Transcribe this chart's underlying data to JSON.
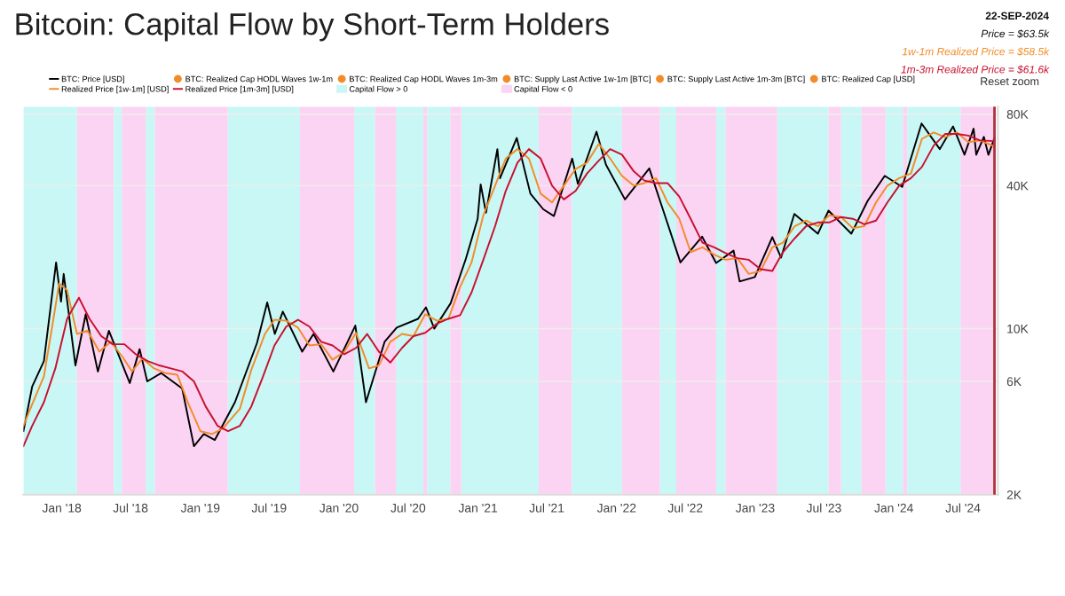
{
  "chart_data": {
    "type": "line",
    "title": "Bitcoin: Capital Flow by Short-Term Holders",
    "annotations": [
      "BTC: Realized Cap HODL Waves 1w-1m",
      "BTC: Realized Cap HODL Waves 1m-3m",
      "BTC: Supply Last Active 1w-1m [BTC]",
      "BTC: Supply Last Active 1m-3m [BTC]",
      "BTC: Realized Cap [USD]",
      "Reset zoom",
      "22-SEP-2024",
      "Price = $63.5k",
      "1w-1m Realized Price = $58.5k",
      "1m-3m Realized Price = $61.6k"
    ],
    "log": "y",
    "grid": "y",
    "legend": "top",
    "line_style": "solid",
    "marker": "none",
    "xlim": [
      "2017-09-22",
      "2024-10-01"
    ],
    "xticks": [
      {
        "value": "2018-01-01",
        "label": "Jan '18"
      },
      {
        "value": "2018-07-01",
        "label": "Jul '18"
      },
      {
        "value": "2019-01-01",
        "label": "Jan '19"
      },
      {
        "value": "2019-07-01",
        "label": "Jul '19"
      },
      {
        "value": "2020-01-01",
        "label": "Jan '20"
      },
      {
        "value": "2020-07-01",
        "label": "Jul '20"
      },
      {
        "value": "2021-01-01",
        "label": "Jan '21"
      },
      {
        "value": "2021-07-01",
        "label": "Jul '21"
      },
      {
        "value": "2022-01-01",
        "label": "Jan '22"
      },
      {
        "value": "2022-07-01",
        "label": "Jul '22"
      },
      {
        "value": "2023-01-01",
        "label": "Jan '23"
      },
      {
        "value": "2023-07-01",
        "label": "Jul '23"
      },
      {
        "value": "2024-01-01",
        "label": "Jan '24"
      },
      {
        "value": "2024-07-01",
        "label": "Jul '24"
      }
    ],
    "ylim": [
      2000,
      86000
    ],
    "yticks": [
      {
        "value": 2000,
        "label": "2K"
      },
      {
        "value": 6000,
        "label": "6K"
      },
      {
        "value": 10000,
        "label": "10K"
      },
      {
        "value": 40000,
        "label": "40K"
      },
      {
        "value": 80000,
        "label": "80K"
      }
    ],
    "ref_lines": [
      {
        "axis": "x",
        "value": "2024-09-22",
        "color": "#b0303a"
      }
    ],
    "bands": [
      {
        "axis": "x",
        "from": "2017-09-22",
        "to": "2018-02-10",
        "label": "Capital Flow > 0",
        "color": "#c9f7f5"
      },
      {
        "axis": "x",
        "from": "2018-02-10",
        "to": "2018-05-18",
        "label": "Capital Flow < 0",
        "color": "#fbd3f3"
      },
      {
        "axis": "x",
        "from": "2018-05-18",
        "to": "2018-06-08",
        "color": "#c9f7f5"
      },
      {
        "axis": "x",
        "from": "2018-08-10",
        "to": "2018-09-03",
        "color": "#c9f7f5"
      },
      {
        "axis": "x",
        "from": "2019-03-14",
        "to": "2019-09-20",
        "color": "#c9f7f5"
      },
      {
        "axis": "x",
        "from": "2020-02-10",
        "to": "2020-04-05",
        "color": "#c9f7f5"
      },
      {
        "axis": "x",
        "from": "2020-05-30",
        "to": "2020-08-10",
        "color": "#c9f7f5"
      },
      {
        "axis": "x",
        "from": "2020-08-20",
        "to": "2020-10-20",
        "color": "#c9f7f5"
      },
      {
        "axis": "x",
        "from": "2020-11-18",
        "to": "2021-06-10",
        "color": "#c9f7f5"
      },
      {
        "axis": "x",
        "from": "2021-09-05",
        "to": "2022-01-15",
        "color": "#c9f7f5"
      },
      {
        "axis": "x",
        "from": "2022-04-25",
        "to": "2022-06-07",
        "color": "#c9f7f5"
      },
      {
        "axis": "x",
        "from": "2022-09-20",
        "to": "2022-10-15",
        "color": "#c9f7f5"
      },
      {
        "axis": "x",
        "from": "2023-02-28",
        "to": "2023-07-13",
        "color": "#c9f7f5"
      },
      {
        "axis": "x",
        "from": "2023-08-15",
        "to": "2023-10-08",
        "color": "#c9f7f5"
      },
      {
        "axis": "x",
        "from": "2023-12-10",
        "to": "2024-01-25",
        "color": "#c9f7f5"
      },
      {
        "axis": "x",
        "from": "2024-02-05",
        "to": "2024-06-25",
        "color": "#c9f7f5"
      },
      {
        "axis": "x",
        "from": "2018-06-08",
        "to": "2018-08-10",
        "color": "#fbd3f3"
      },
      {
        "axis": "x",
        "from": "2018-09-03",
        "to": "2019-03-14",
        "color": "#fbd3f3"
      },
      {
        "axis": "x",
        "from": "2019-09-20",
        "to": "2020-02-10",
        "color": "#fbd3f3"
      },
      {
        "axis": "x",
        "from": "2020-04-05",
        "to": "2020-05-30",
        "color": "#fbd3f3"
      },
      {
        "axis": "x",
        "from": "2020-08-10",
        "to": "2020-08-20",
        "color": "#fbd3f3"
      },
      {
        "axis": "x",
        "from": "2020-10-20",
        "to": "2020-11-18",
        "color": "#fbd3f3"
      },
      {
        "axis": "x",
        "from": "2021-06-10",
        "to": "2021-09-05",
        "color": "#fbd3f3"
      },
      {
        "axis": "x",
        "from": "2022-01-15",
        "to": "2022-04-25",
        "color": "#fbd3f3"
      },
      {
        "axis": "x",
        "from": "2022-06-07",
        "to": "2022-09-20",
        "color": "#fbd3f3"
      },
      {
        "axis": "x",
        "from": "2022-10-15",
        "to": "2023-02-28",
        "color": "#fbd3f3"
      },
      {
        "axis": "x",
        "from": "2023-07-13",
        "to": "2023-08-15",
        "color": "#fbd3f3"
      },
      {
        "axis": "x",
        "from": "2023-10-08",
        "to": "2023-12-10",
        "color": "#fbd3f3"
      },
      {
        "axis": "x",
        "from": "2024-01-25",
        "to": "2024-02-05",
        "color": "#fbd3f3"
      },
      {
        "axis": "x",
        "from": "2024-06-25",
        "to": "2024-09-22",
        "color": "#fbd3f3"
      }
    ],
    "series": [
      {
        "name": "BTC: Price [USD]",
        "color": "#000000",
        "x": [
          "2017-09-22",
          "2017-10-15",
          "2017-11-15",
          "2017-12-17",
          "2017-12-30",
          "2018-01-06",
          "2018-02-06",
          "2018-03-05",
          "2018-04-06",
          "2018-05-05",
          "2018-06-29",
          "2018-07-25",
          "2018-08-14",
          "2018-09-20",
          "2018-11-14",
          "2018-12-15",
          "2019-01-10",
          "2019-02-08",
          "2019-04-02",
          "2019-05-30",
          "2019-06-26",
          "2019-07-16",
          "2019-08-06",
          "2019-09-26",
          "2019-10-26",
          "2019-12-17",
          "2020-02-13",
          "2020-03-12",
          "2020-04-30",
          "2020-06-01",
          "2020-07-27",
          "2020-08-17",
          "2020-09-08",
          "2020-10-21",
          "2020-11-30",
          "2020-12-31",
          "2021-01-08",
          "2021-01-22",
          "2021-02-21",
          "2021-02-28",
          "2021-04-13",
          "2021-05-19",
          "2021-06-22",
          "2021-07-20",
          "2021-09-06",
          "2021-09-21",
          "2021-11-09",
          "2021-12-04",
          "2022-01-23",
          "2022-03-28",
          "2022-05-12",
          "2022-06-18",
          "2022-08-14",
          "2022-09-20",
          "2022-11-05",
          "2022-11-21",
          "2022-12-31",
          "2023-02-15",
          "2023-03-10",
          "2023-04-14",
          "2023-06-15",
          "2023-07-13",
          "2023-09-11",
          "2023-10-24",
          "2023-12-08",
          "2024-01-23",
          "2024-03-14",
          "2024-05-01",
          "2024-06-05",
          "2024-07-05",
          "2024-07-29",
          "2024-08-05",
          "2024-08-25",
          "2024-09-06",
          "2024-09-22"
        ],
        "values": [
          3700,
          5700,
          7300,
          19000,
          13000,
          17000,
          7000,
          11500,
          6600,
          9800,
          5900,
          8200,
          6000,
          6500,
          5600,
          3200,
          3600,
          3400,
          4900,
          8700,
          12900,
          9500,
          11800,
          8000,
          9500,
          6600,
          10300,
          4900,
          8800,
          10100,
          11000,
          12300,
          10000,
          12800,
          19700,
          29000,
          40500,
          30800,
          57000,
          43000,
          63500,
          37000,
          31800,
          29800,
          52000,
          40700,
          67500,
          49000,
          35000,
          47300,
          28700,
          19000,
          24400,
          18900,
          21300,
          15800,
          16500,
          24300,
          19900,
          30400,
          25100,
          31400,
          25100,
          34500,
          44000,
          39500,
          73100,
          57000,
          71000,
          54000,
          69500,
          54000,
          64200,
          53900,
          63500
        ]
      },
      {
        "name": "Realized Price [1w-1m] [USD]",
        "color": "#f28c28",
        "x": [
          "2017-09-22",
          "2017-10-15",
          "2017-11-15",
          "2017-12-10",
          "2017-12-25",
          "2018-01-15",
          "2018-02-10",
          "2018-03-10",
          "2018-04-10",
          "2018-05-10",
          "2018-06-10",
          "2018-07-05",
          "2018-08-01",
          "2018-09-01",
          "2018-10-01",
          "2018-11-01",
          "2018-12-01",
          "2019-01-01",
          "2019-02-01",
          "2019-03-01",
          "2019-04-15",
          "2019-05-15",
          "2019-06-20",
          "2019-07-15",
          "2019-08-15",
          "2019-09-15",
          "2019-10-15",
          "2019-11-15",
          "2019-12-15",
          "2020-01-15",
          "2020-02-15",
          "2020-03-20",
          "2020-04-15",
          "2020-05-15",
          "2020-06-15",
          "2020-07-15",
          "2020-08-15",
          "2020-09-15",
          "2020-10-15",
          "2020-11-15",
          "2020-12-15",
          "2021-01-15",
          "2021-02-15",
          "2021-03-15",
          "2021-04-15",
          "2021-05-15",
          "2021-06-15",
          "2021-07-15",
          "2021-08-15",
          "2021-09-15",
          "2021-10-15",
          "2021-11-15",
          "2021-12-15",
          "2022-01-15",
          "2022-02-15",
          "2022-03-15",
          "2022-04-15",
          "2022-05-15",
          "2022-06-15",
          "2022-07-15",
          "2022-08-15",
          "2022-09-15",
          "2022-10-15",
          "2022-11-15",
          "2022-12-15",
          "2023-01-15",
          "2023-02-15",
          "2023-03-15",
          "2023-04-15",
          "2023-05-15",
          "2023-06-15",
          "2023-07-15",
          "2023-08-15",
          "2023-09-15",
          "2023-10-15",
          "2023-11-15",
          "2023-12-15",
          "2024-01-15",
          "2024-02-15",
          "2024-03-15",
          "2024-04-15",
          "2024-05-15",
          "2024-06-15",
          "2024-07-15",
          "2024-08-15",
          "2024-09-22"
        ],
        "values": [
          3900,
          4800,
          6300,
          11000,
          15500,
          14500,
          9500,
          9800,
          8000,
          8800,
          7600,
          6600,
          7500,
          6800,
          6500,
          6400,
          4800,
          3700,
          3600,
          3800,
          4600,
          6700,
          9500,
          10900,
          10800,
          10100,
          8500,
          8600,
          7400,
          8000,
          9600,
          6800,
          7000,
          8800,
          9500,
          9300,
          11500,
          10800,
          11000,
          15000,
          19000,
          30000,
          40000,
          52000,
          57000,
          52000,
          37000,
          34000,
          40000,
          47000,
          50000,
          60000,
          52000,
          44000,
          40000,
          41000,
          43000,
          34000,
          29000,
          21000,
          22000,
          20500,
          19500,
          19800,
          17000,
          17500,
          22000,
          23000,
          27000,
          28500,
          27000,
          30000,
          29500,
          26500,
          27000,
          34000,
          40000,
          43000,
          45000,
          63000,
          67000,
          64000,
          67000,
          61000,
          62000,
          58500
        ]
      },
      {
        "name": "Realized Price [1m-3m] [USD]",
        "color": "#c8102e",
        "x": [
          "2017-09-22",
          "2017-10-15",
          "2017-11-15",
          "2017-12-15",
          "2018-01-15",
          "2018-02-15",
          "2018-03-15",
          "2018-04-15",
          "2018-05-15",
          "2018-06-15",
          "2018-07-15",
          "2018-08-15",
          "2018-09-15",
          "2018-10-15",
          "2018-11-15",
          "2018-12-15",
          "2019-01-15",
          "2019-02-15",
          "2019-03-15",
          "2019-04-15",
          "2019-05-15",
          "2019-06-15",
          "2019-07-15",
          "2019-08-15",
          "2019-09-15",
          "2019-10-15",
          "2019-11-15",
          "2019-12-15",
          "2020-01-15",
          "2020-02-15",
          "2020-03-15",
          "2020-04-15",
          "2020-05-15",
          "2020-06-15",
          "2020-07-15",
          "2020-08-15",
          "2020-09-15",
          "2020-10-15",
          "2020-11-15",
          "2020-12-15",
          "2021-01-15",
          "2021-02-15",
          "2021-03-15",
          "2021-04-15",
          "2021-05-15",
          "2021-06-15",
          "2021-07-15",
          "2021-08-15",
          "2021-09-15",
          "2021-10-15",
          "2021-11-15",
          "2021-12-15",
          "2022-01-15",
          "2022-02-15",
          "2022-03-15",
          "2022-04-15",
          "2022-05-15",
          "2022-06-15",
          "2022-07-15",
          "2022-08-15",
          "2022-09-15",
          "2022-10-15",
          "2022-11-15",
          "2022-12-15",
          "2023-01-15",
          "2023-02-15",
          "2023-03-15",
          "2023-04-15",
          "2023-05-15",
          "2023-06-15",
          "2023-07-15",
          "2023-08-15",
          "2023-09-15",
          "2023-10-15",
          "2023-11-15",
          "2023-12-15",
          "2024-01-15",
          "2024-02-15",
          "2024-03-15",
          "2024-04-15",
          "2024-05-15",
          "2024-06-15",
          "2024-07-15",
          "2024-08-15",
          "2024-09-22"
        ],
        "values": [
          3200,
          3900,
          4900,
          6800,
          11000,
          13500,
          11000,
          9300,
          8600,
          8600,
          7800,
          7300,
          7000,
          6800,
          6600,
          6000,
          4700,
          3900,
          3700,
          3900,
          4700,
          6300,
          8500,
          10200,
          10900,
          10200,
          8800,
          8500,
          7800,
          8300,
          9500,
          8000,
          7200,
          8300,
          9300,
          9600,
          10500,
          11000,
          11400,
          14200,
          19500,
          27000,
          38000,
          50000,
          57000,
          52000,
          40000,
          35000,
          38000,
          45000,
          51000,
          57000,
          54000,
          46000,
          42000,
          41000,
          41000,
          36000,
          29000,
          23000,
          22000,
          20800,
          19800,
          19500,
          17800,
          17500,
          21000,
          24000,
          27000,
          28000,
          28000,
          29500,
          29000,
          27500,
          28500,
          34000,
          40000,
          43000,
          48000,
          59000,
          66000,
          66000,
          65000,
          62000,
          61600
        ]
      }
    ]
  }
}
